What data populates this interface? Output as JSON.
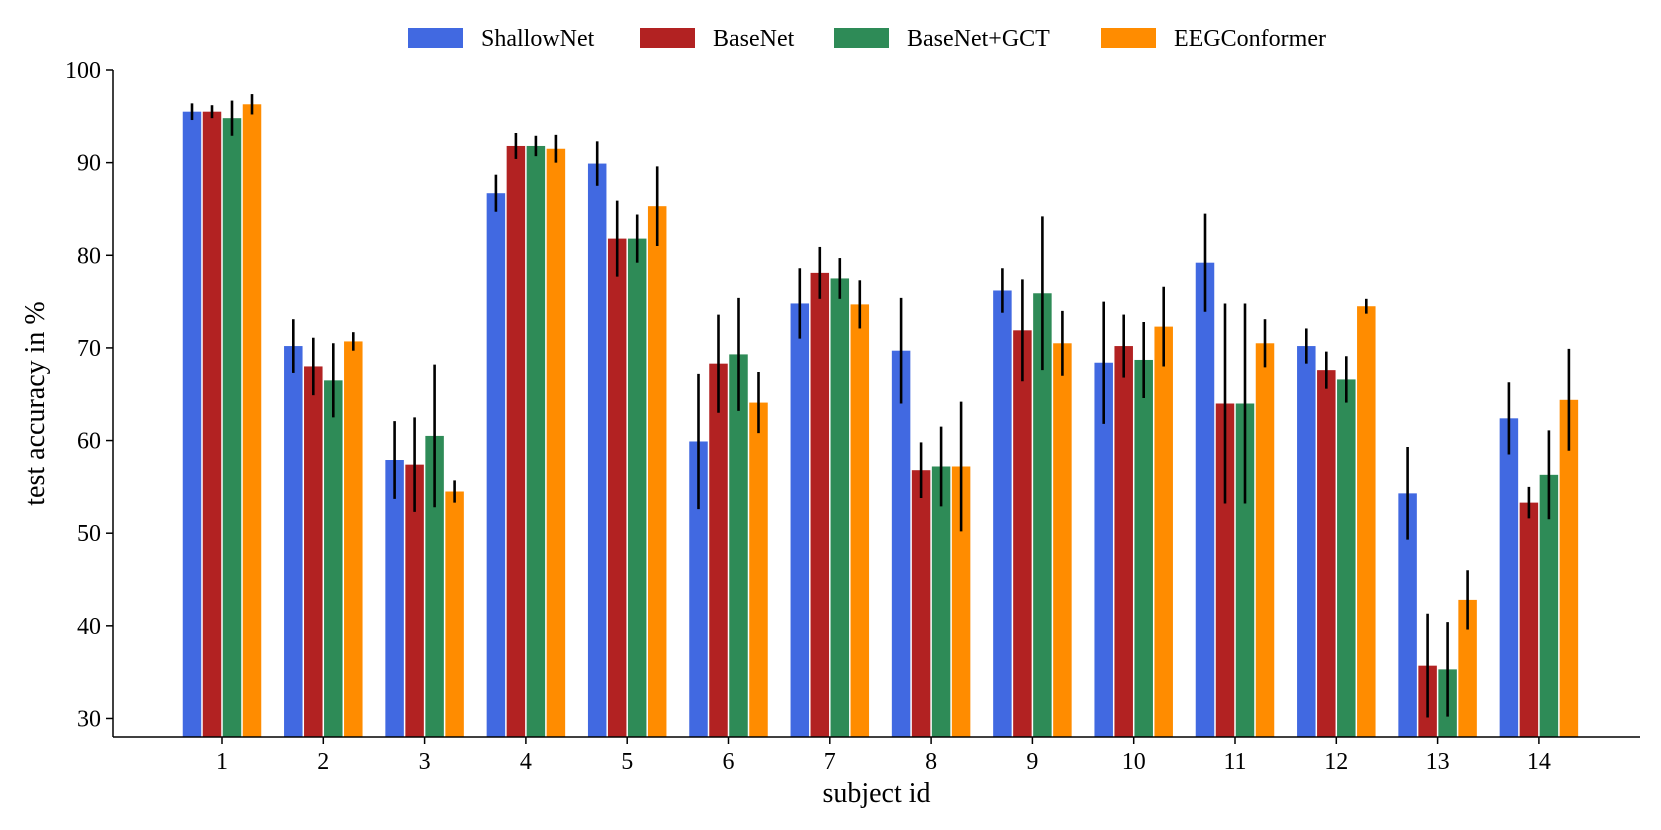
{
  "chart_data": {
    "type": "bar",
    "title": "",
    "xlabel": "subject id",
    "ylabel": "test accuracy in %",
    "ylim": [
      28,
      100
    ],
    "yticks": [
      30,
      40,
      50,
      60,
      70,
      80,
      90,
      100
    ],
    "grid": false,
    "legend_position": "top-center",
    "categories": [
      "1",
      "2",
      "3",
      "4",
      "5",
      "6",
      "7",
      "8",
      "9",
      "10",
      "11",
      "12",
      "13",
      "14"
    ],
    "series": [
      {
        "name": "ShallowNet",
        "color": "#4169E1",
        "values": [
          95.5,
          70.2,
          57.9,
          86.7,
          89.9,
          59.9,
          74.8,
          69.7,
          76.2,
          68.4,
          79.2,
          70.2,
          54.3,
          62.4
        ],
        "errors": [
          0.9,
          2.9,
          4.2,
          2.0,
          2.4,
          7.3,
          3.8,
          5.7,
          2.4,
          6.6,
          5.3,
          1.9,
          5.0,
          3.9
        ]
      },
      {
        "name": "BaseNet",
        "color": "#B22222",
        "values": [
          95.5,
          68.0,
          57.4,
          91.8,
          81.8,
          68.3,
          78.1,
          56.8,
          71.9,
          70.2,
          64.0,
          67.6,
          35.7,
          53.3
        ],
        "errors": [
          0.7,
          3.1,
          5.1,
          1.4,
          4.1,
          5.3,
          2.8,
          3.0,
          5.5,
          3.4,
          10.8,
          2.0,
          5.6,
          1.7
        ]
      },
      {
        "name": "BaseNet+GCT",
        "color": "#2E8B57",
        "values": [
          94.8,
          66.5,
          60.5,
          91.8,
          81.8,
          69.3,
          77.5,
          57.2,
          75.9,
          68.7,
          64.0,
          66.6,
          35.3,
          56.3
        ],
        "errors": [
          1.9,
          4.0,
          7.7,
          1.1,
          2.6,
          6.1,
          2.2,
          4.3,
          8.3,
          4.1,
          10.8,
          2.5,
          5.1,
          4.8
        ]
      },
      {
        "name": "EEGConformer",
        "color": "#FF8C00",
        "values": [
          96.3,
          70.7,
          54.5,
          91.5,
          85.3,
          64.1,
          74.7,
          57.2,
          70.5,
          72.3,
          70.5,
          74.5,
          42.8,
          64.4
        ],
        "errors": [
          1.1,
          1.0,
          1.2,
          1.5,
          4.3,
          3.3,
          2.6,
          7.0,
          3.5,
          4.3,
          2.6,
          0.8,
          3.2,
          5.5
        ]
      }
    ]
  }
}
